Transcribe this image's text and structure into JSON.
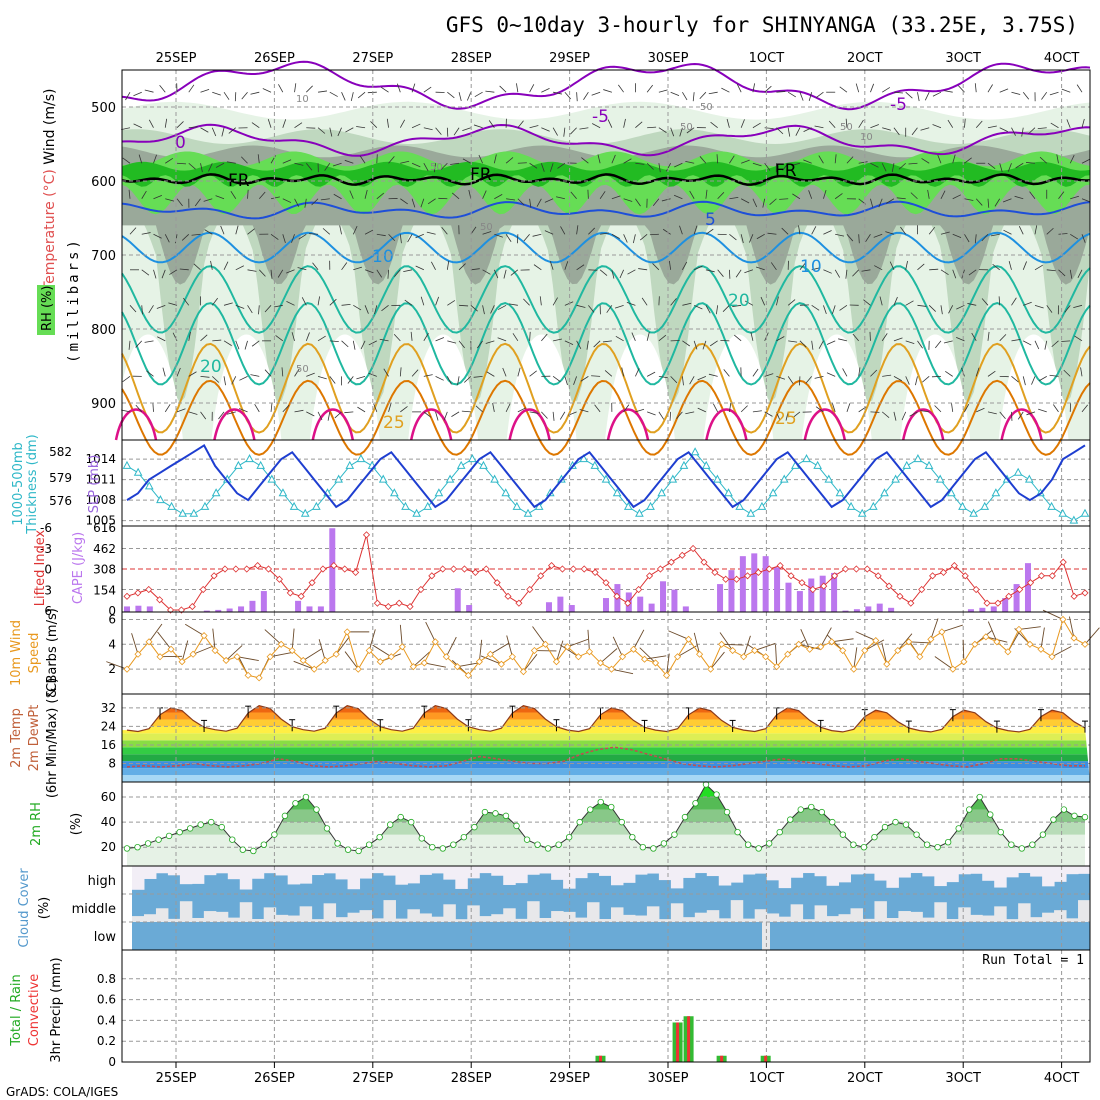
{
  "chart_data": {
    "type": "meteogram",
    "title": "GFS 0~10day 3-hourly for SHINYANGA (33.25E, 3.75S)",
    "credit": "GrADS: COLA/IGES",
    "date_labels": [
      "25SEP",
      "26SEP",
      "27SEP",
      "28SEP",
      "29SEP",
      "30SEP",
      "1OCT",
      "2OCT",
      "3OCT",
      "4OCT"
    ],
    "colors": {
      "rh_light": "#e6f3e6",
      "rh_mid": "#bfd8bf",
      "rh_grey": "#9aa99a",
      "rh_green": "#66dd55",
      "rh_bright": "#22bb22",
      "temp_purple": "#8800bb",
      "temp_blue": "#1e4fd8",
      "temp_lightblue": "#1e90e0",
      "temp_teal": "#20b8a0",
      "temp_orange": "#e0a020",
      "temp_darkorange": "#dd7700",
      "temp_magenta": "#dd1188",
      "barb": "#333333",
      "slp": "#1e3ed0",
      "thickness": "#30b8c8",
      "lifted": "#dd3333",
      "cape": "#bb77ee",
      "wind": "#e8981e",
      "dewpt": "#c05050",
      "rh2m_line": "#333333",
      "rh2m_marker": "#22aa22",
      "cloud": "#6aaad6",
      "precip_total": "#33bb33",
      "precip_conv": "#ee3333"
    },
    "panels": [
      {
        "name": "upper-air",
        "ylabel_lines": [
          "Wind (m/s)",
          "Temperature (°C)",
          "RH (%)"
        ],
        "y_axis_label": "(millibars)",
        "yticks": [
          500,
          600,
          700,
          800,
          900
        ],
        "ylim": [
          450,
          950
        ],
        "contour_labels": [
          "-5",
          "-5",
          "0",
          "FR",
          "FR",
          "FR",
          "5",
          "10",
          "10",
          "20",
          "20",
          "25",
          "25"
        ],
        "rh_contour_labels": [
          "10",
          "50",
          "50",
          "50",
          "50",
          "50",
          "50",
          "10"
        ]
      },
      {
        "name": "slp-thickness",
        "ylabel_lines": [
          "1000-500mb",
          "Thickness (dm)"
        ],
        "ylabel_right": "SLP (mb)",
        "left_ticks": [
          "582",
          "579",
          "576"
        ],
        "right_ticks": [
          "1014",
          "1011",
          "1008",
          "1005"
        ],
        "slp_ylim": [
          1004.5,
          1016.5
        ],
        "slp": [
          1008,
          1009,
          1011,
          1012,
          1013,
          1014,
          1015,
          1016,
          1013,
          1011,
          1009,
          1008,
          1010,
          1012,
          1014,
          1015,
          1013,
          1011,
          1009,
          1007,
          1008,
          1010,
          1012,
          1014,
          1015,
          1013,
          1011,
          1009,
          1007,
          1008,
          1010,
          1012,
          1014,
          1015,
          1013,
          1011,
          1009,
          1007,
          1008,
          1010,
          1012,
          1014,
          1015,
          1013,
          1011,
          1009,
          1007,
          1008,
          1010,
          1012,
          1014,
          1015,
          1013,
          1011,
          1009,
          1007,
          1008,
          1010,
          1012,
          1014,
          1015,
          1013,
          1011,
          1009,
          1007,
          1008,
          1010,
          1012,
          1014,
          1015,
          1013,
          1011,
          1009,
          1007,
          1008,
          1010,
          1012,
          1014,
          1015,
          1013,
          1011,
          1009,
          1008,
          1009,
          1011,
          1014,
          1015,
          1016
        ],
        "thickness": [
          1013,
          1012,
          1010,
          1008,
          1007,
          1006,
          1006,
          1007,
          1009,
          1011,
          1013,
          1014,
          1013,
          1011,
          1009,
          1007,
          1006,
          1007,
          1009,
          1011,
          1013,
          1014,
          1013,
          1011,
          1009,
          1007,
          1006,
          1007,
          1009,
          1011,
          1013,
          1014,
          1013,
          1011,
          1009,
          1007,
          1006,
          1007,
          1009,
          1011,
          1013,
          1014,
          1013,
          1011,
          1009,
          1007,
          1006,
          1007,
          1009,
          1011,
          1013,
          1015,
          1013,
          1011,
          1009,
          1007,
          1006,
          1007,
          1009,
          1011,
          1013,
          1014,
          1013,
          1011,
          1009,
          1007,
          1006,
          1007,
          1009,
          1011,
          1013,
          1014,
          1013,
          1011,
          1009,
          1007,
          1006,
          1007,
          1009,
          1011,
          1012,
          1011,
          1009,
          1007,
          1006,
          1005,
          1006
        ]
      },
      {
        "name": "lifted-cape",
        "ylabel_lines": [
          "Lifted Index",
          "CAPE (J/kg)"
        ],
        "left_ticks": [
          "-6",
          "-3",
          "0",
          "3",
          "6"
        ],
        "right_ticks": [
          "616",
          "462",
          "308",
          "154",
          "0"
        ],
        "li_ylim": [
          -6,
          6
        ],
        "lifted": [
          4,
          3.5,
          3,
          4.5,
          6,
          6,
          5.5,
          3,
          1,
          0,
          0,
          0,
          -0.5,
          0,
          1.5,
          3.5,
          4,
          2,
          0,
          -0.5,
          0,
          0.5,
          -5,
          5,
          5.5,
          5,
          5.5,
          3,
          1,
          0,
          0,
          0,
          0.5,
          0,
          2,
          4,
          5,
          3,
          1,
          -0.5,
          0,
          0,
          0,
          0.5,
          2,
          4,
          5,
          3,
          1,
          0,
          -1,
          -2,
          -3,
          -1,
          0.5,
          1.5,
          1.5,
          1,
          0.5,
          0,
          -0.5,
          1,
          2,
          3,
          2.5,
          1,
          0,
          0,
          0,
          1,
          2.5,
          4,
          5,
          3,
          1,
          0.5,
          -0.5,
          1,
          3,
          5,
          5,
          4,
          3,
          2,
          1,
          1,
          -1,
          4,
          3.5
        ],
        "cape": [
          40,
          45,
          40,
          0,
          0,
          0,
          0,
          10,
          15,
          25,
          40,
          80,
          150,
          0,
          0,
          80,
          40,
          40,
          600,
          0,
          0,
          0,
          0,
          0,
          0,
          0,
          0,
          170,
          50,
          0,
          0,
          70,
          110,
          50,
          0,
          0,
          100,
          200,
          140,
          110,
          60,
          220,
          160,
          40,
          0,
          0,
          200,
          300,
          400,
          420,
          400,
          320,
          210,
          150,
          240,
          260,
          280,
          10,
          20,
          40,
          60,
          30,
          0,
          0,
          0,
          0,
          0,
          0,
          20,
          30,
          40,
          100,
          200,
          350,
          0,
          0,
          0
        ],
        "cape_ylim": [
          0,
          616
        ]
      },
      {
        "name": "wind10m",
        "ylabel_lines": [
          "10m Wind",
          "Speed",
          "& Barbs (m/s)"
        ],
        "yticks": [
          "6",
          "4",
          "2"
        ],
        "ylim": [
          0,
          6.6
        ],
        "speed": [
          2.0,
          3.2,
          4.2,
          3.0,
          3.6,
          2.6,
          3.2,
          4.7,
          3.5,
          2.7,
          3.0,
          1.5,
          1.3,
          3.0,
          4.0,
          3.5,
          2.7,
          2.0,
          2.7,
          3.2,
          5.0,
          2.0,
          3.5,
          2.6,
          3.0,
          3.8,
          2.2,
          2.5,
          4.2,
          3.0,
          2.2,
          1.5,
          2.6,
          3.2,
          2.4,
          3.0,
          1.8,
          3.5,
          4.0,
          2.6,
          3.8,
          3.0,
          3.4,
          2.5,
          2.0,
          3.0,
          3.6,
          2.8,
          2.5,
          1.5,
          3.0,
          4.4,
          3.2,
          2.0,
          4.0,
          3.5,
          3.0,
          3.5,
          3.0,
          2.2,
          3.2,
          4.0,
          3.6,
          3.8,
          4.2,
          3.5,
          2.0,
          3.5,
          4.3,
          2.4,
          3.5,
          4.2,
          3.0,
          4.4,
          5.0,
          2.0,
          2.6,
          4.0,
          4.6,
          4.2,
          3.4,
          5.2,
          4.0,
          3.6,
          3.0,
          6.0,
          4.5,
          4.0
        ]
      },
      {
        "name": "temp2m",
        "ylabel_lines": [
          "2m Temp",
          "2m DewPt",
          "(6hr Min/Max) (°C)"
        ],
        "yticks": [
          "32",
          "24",
          "16",
          "8"
        ],
        "ylim": [
          0,
          38
        ],
        "temp_max_days": [
          32,
          33,
          33,
          33,
          33,
          32,
          32,
          32,
          31,
          31
        ],
        "temp_min": 20,
        "dewpt": [
          6.5,
          7,
          6.5,
          7,
          8,
          7,
          6.5,
          7,
          8,
          10,
          9,
          7,
          6.5,
          7,
          8,
          9,
          8,
          7,
          6.5,
          7,
          9,
          11,
          10,
          9,
          8,
          8,
          9,
          12,
          14,
          15,
          14,
          12,
          10,
          8,
          7,
          6.5,
          7,
          8,
          9,
          10,
          9,
          8,
          7,
          6.5,
          7,
          9,
          10,
          9,
          8,
          7,
          6.5,
          8,
          10,
          10,
          9,
          8,
          7,
          7
        ]
      },
      {
        "name": "rh2m",
        "ylabel_lines": [
          "2m RH",
          "(%)"
        ],
        "yticks": [
          "60",
          "40",
          "20"
        ],
        "ylim": [
          5,
          72
        ],
        "rh": [
          19,
          20,
          23,
          26,
          29,
          32,
          35,
          38,
          40,
          36,
          26,
          18,
          17,
          22,
          30,
          45,
          55,
          60,
          50,
          35,
          23,
          18,
          17,
          22,
          28,
          38,
          44,
          40,
          27,
          20,
          19,
          22,
          28,
          36,
          48,
          47,
          45,
          37,
          26,
          22,
          19,
          22,
          28,
          40,
          50,
          56,
          52,
          40,
          28,
          20,
          19,
          23,
          30,
          44,
          55,
          70,
          62,
          48,
          32,
          22,
          19,
          23,
          32,
          42,
          50,
          52,
          48,
          40,
          30,
          22,
          20,
          28,
          36,
          40,
          38,
          30,
          22,
          20,
          24,
          35,
          50,
          60,
          46,
          32,
          22,
          19,
          22,
          30,
          42,
          50,
          45,
          44
        ]
      },
      {
        "name": "cloud-cover",
        "ylabel_lines": [
          "Cloud Cover",
          "(%)"
        ],
        "levels": [
          "high",
          "middle",
          "low"
        ]
      },
      {
        "name": "precip",
        "ylabel_lines": [
          "Total / Rain",
          "Convective",
          "3hr Precip (mm)"
        ],
        "yticks": [
          "0.8",
          "0.6",
          "0.4",
          "0.2",
          "0"
        ],
        "ylim": [
          0,
          1.0
        ],
        "run_total": "Run Total = 1",
        "precip": [
          {
            "i": 43,
            "v": 0.06
          },
          {
            "i": 50,
            "v": 0.38
          },
          {
            "i": 51,
            "v": 0.44
          },
          {
            "i": 54,
            "v": 0.06
          },
          {
            "i": 58,
            "v": 0.06
          }
        ]
      }
    ]
  }
}
